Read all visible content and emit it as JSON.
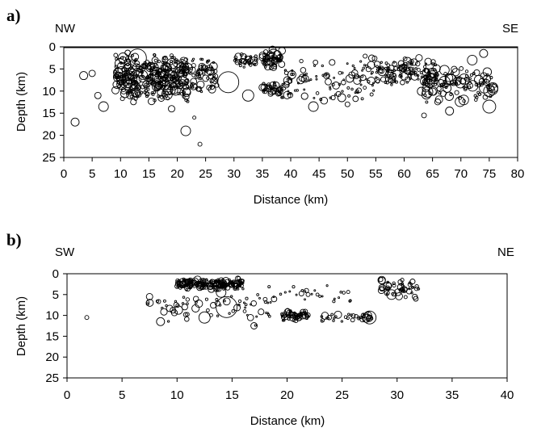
{
  "chart_data": [
    {
      "type": "scatter",
      "panel_label": "a)",
      "left_label": "NW",
      "right_label": "SE",
      "xlabel": "Distance (km)",
      "ylabel": "Depth (km)",
      "xlim": [
        0,
        80
      ],
      "ylim": [
        0,
        25
      ],
      "y_inverted": true,
      "xticks": [
        "0",
        "5",
        "10",
        "15",
        "20",
        "25",
        "30",
        "35",
        "40",
        "45",
        "50",
        "55",
        "60",
        "65",
        "70",
        "75",
        "80"
      ],
      "yticks": [
        "0",
        "5",
        "10",
        "15",
        "20",
        "25"
      ],
      "clusters": [
        {
          "x": [
            9,
            22
          ],
          "y": [
            1,
            13
          ],
          "n": 340,
          "r": [
            1.5,
            6.5
          ]
        },
        {
          "x": [
            22,
            27
          ],
          "y": [
            1.5,
            11
          ],
          "n": 70,
          "r": [
            1.2,
            5
          ]
        },
        {
          "x": [
            30,
            34
          ],
          "y": [
            1.5,
            5
          ],
          "n": 35,
          "r": [
            1.2,
            4.5
          ]
        },
        {
          "x": [
            35,
            38.5
          ],
          "y": [
            0.5,
            5
          ],
          "n": 55,
          "r": [
            1.2,
            6
          ]
        },
        {
          "x": [
            35,
            39
          ],
          "y": [
            8,
            11
          ],
          "n": 40,
          "r": [
            1.2,
            4.5
          ]
        },
        {
          "x": [
            38,
            55
          ],
          "y": [
            1,
            13
          ],
          "n": 110,
          "r": [
            1,
            5
          ]
        },
        {
          "x": [
            55,
            66
          ],
          "y": [
            2,
            9
          ],
          "n": 130,
          "r": [
            1.2,
            5
          ]
        },
        {
          "x": [
            63,
            76
          ],
          "y": [
            4,
            13
          ],
          "n": 110,
          "r": [
            1.5,
            7
          ]
        }
      ],
      "events": [
        {
          "x": 2,
          "y": 17,
          "r": 5
        },
        {
          "x": 3.5,
          "y": 6.5,
          "r": 5
        },
        {
          "x": 5,
          "y": 6,
          "r": 4
        },
        {
          "x": 6,
          "y": 11,
          "r": 4
        },
        {
          "x": 7,
          "y": 13.5,
          "r": 6
        },
        {
          "x": 13,
          "y": 2.5,
          "r": 11
        },
        {
          "x": 15,
          "y": 6,
          "r": 9
        },
        {
          "x": 19,
          "y": 14,
          "r": 4
        },
        {
          "x": 21.5,
          "y": 19,
          "r": 6
        },
        {
          "x": 23,
          "y": 16,
          "r": 2
        },
        {
          "x": 24,
          "y": 22,
          "r": 2.5
        },
        {
          "x": 29,
          "y": 8,
          "r": 13
        },
        {
          "x": 32.5,
          "y": 11,
          "r": 7
        },
        {
          "x": 37,
          "y": 2,
          "r": 8
        },
        {
          "x": 44,
          "y": 13.5,
          "r": 6
        },
        {
          "x": 49,
          "y": 11.5,
          "r": 5
        },
        {
          "x": 50,
          "y": 13,
          "r": 3
        },
        {
          "x": 63.5,
          "y": 15.5,
          "r": 3
        },
        {
          "x": 68,
          "y": 14.5,
          "r": 5
        },
        {
          "x": 72,
          "y": 3,
          "r": 6
        },
        {
          "x": 74,
          "y": 1.5,
          "r": 5
        },
        {
          "x": 75,
          "y": 13.5,
          "r": 8
        },
        {
          "x": 75,
          "y": 10,
          "r": 7
        },
        {
          "x": 70.5,
          "y": 12,
          "r": 6
        }
      ]
    },
    {
      "type": "scatter",
      "panel_label": "b)",
      "left_label": "SW",
      "right_label": "NE",
      "xlabel": "Distance (km)",
      "ylabel": "Depth (km)",
      "xlim": [
        0,
        40
      ],
      "ylim": [
        0,
        25
      ],
      "y_inverted": true,
      "xticks": [
        "0",
        "5",
        "10",
        "15",
        "20",
        "25",
        "30",
        "35",
        "40"
      ],
      "yticks": [
        "0",
        "5",
        "10",
        "15",
        "20",
        "25"
      ],
      "clusters": [
        {
          "x": [
            10,
            16
          ],
          "y": [
            1,
            4
          ],
          "n": 200,
          "r": [
            1.2,
            4.5
          ]
        },
        {
          "x": [
            7,
            16
          ],
          "y": [
            4,
            12
          ],
          "n": 45,
          "r": [
            1.2,
            5.5
          ]
        },
        {
          "x": [
            16,
            19
          ],
          "y": [
            1,
            13
          ],
          "n": 25,
          "r": [
            1,
            4
          ]
        },
        {
          "x": [
            19.5,
            22
          ],
          "y": [
            8.5,
            11.5
          ],
          "n": 60,
          "r": [
            1.2,
            4
          ]
        },
        {
          "x": [
            19,
            26
          ],
          "y": [
            2,
            8
          ],
          "n": 25,
          "r": [
            1,
            3
          ]
        },
        {
          "x": [
            23,
            28
          ],
          "y": [
            9,
            12
          ],
          "n": 35,
          "r": [
            1.2,
            4.5
          ]
        },
        {
          "x": [
            28.5,
            32
          ],
          "y": [
            1,
            6
          ],
          "n": 50,
          "r": [
            1.2,
            5
          ]
        }
      ],
      "events": [
        {
          "x": 1.8,
          "y": 10.5,
          "r": 2.5
        },
        {
          "x": 7.5,
          "y": 5.5,
          "r": 4
        },
        {
          "x": 8.5,
          "y": 11.5,
          "r": 5
        },
        {
          "x": 12.5,
          "y": 10.5,
          "r": 7
        },
        {
          "x": 14.5,
          "y": 8,
          "r": 13
        },
        {
          "x": 14,
          "y": 4.5,
          "r": 6
        },
        {
          "x": 17,
          "y": 12.5,
          "r": 4
        },
        {
          "x": 27.5,
          "y": 10.5,
          "r": 8
        },
        {
          "x": 27.2,
          "y": 10.7,
          "r": 5
        },
        {
          "x": 29.5,
          "y": 5,
          "r": 6
        },
        {
          "x": 31.7,
          "y": 6,
          "r": 3
        }
      ]
    }
  ]
}
